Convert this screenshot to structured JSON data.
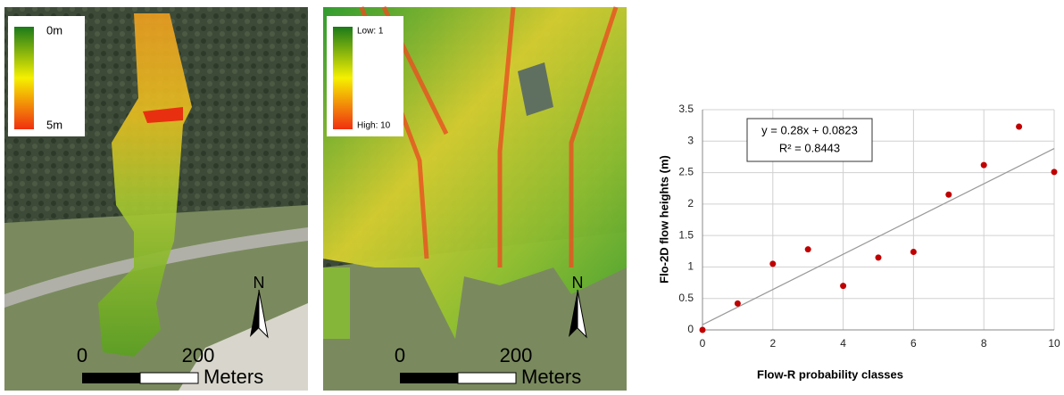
{
  "maps": [
    {
      "legend_top": "0m",
      "legend_bottom": "5m",
      "scale_start": "0",
      "scale_end": "200",
      "scale_unit": "Meters",
      "north": "N"
    },
    {
      "legend_top": "Low: 1",
      "legend_bottom": "High: 10",
      "scale_start": "0",
      "scale_end": "200",
      "scale_unit": "Meters",
      "north": "N"
    }
  ],
  "chart_data": {
    "type": "scatter",
    "x_label": "Flow-R probability classes",
    "y_label": "Flo-2D flow heights (m)",
    "x": [
      0,
      1,
      2,
      3,
      4,
      5,
      6,
      7,
      8,
      9,
      10
    ],
    "values": [
      0,
      0.42,
      1.05,
      1.28,
      0.7,
      1.15,
      1.24,
      2.15,
      2.62,
      3.23,
      2.51
    ],
    "color": "#c00000",
    "trendline": {
      "slope": 0.28,
      "intercept": 0.0823,
      "color": "#999999"
    },
    "annotations": [
      "y = 0.28x + 0.0823",
      "R² = 0.8443"
    ],
    "xlim": [
      0,
      10
    ],
    "xticks": [
      0,
      2,
      4,
      6,
      8,
      10
    ],
    "ylim": [
      0,
      3.5
    ],
    "yticks": [
      0,
      0.5,
      1,
      1.5,
      2,
      2.5,
      3,
      3.5
    ],
    "grid": true
  }
}
